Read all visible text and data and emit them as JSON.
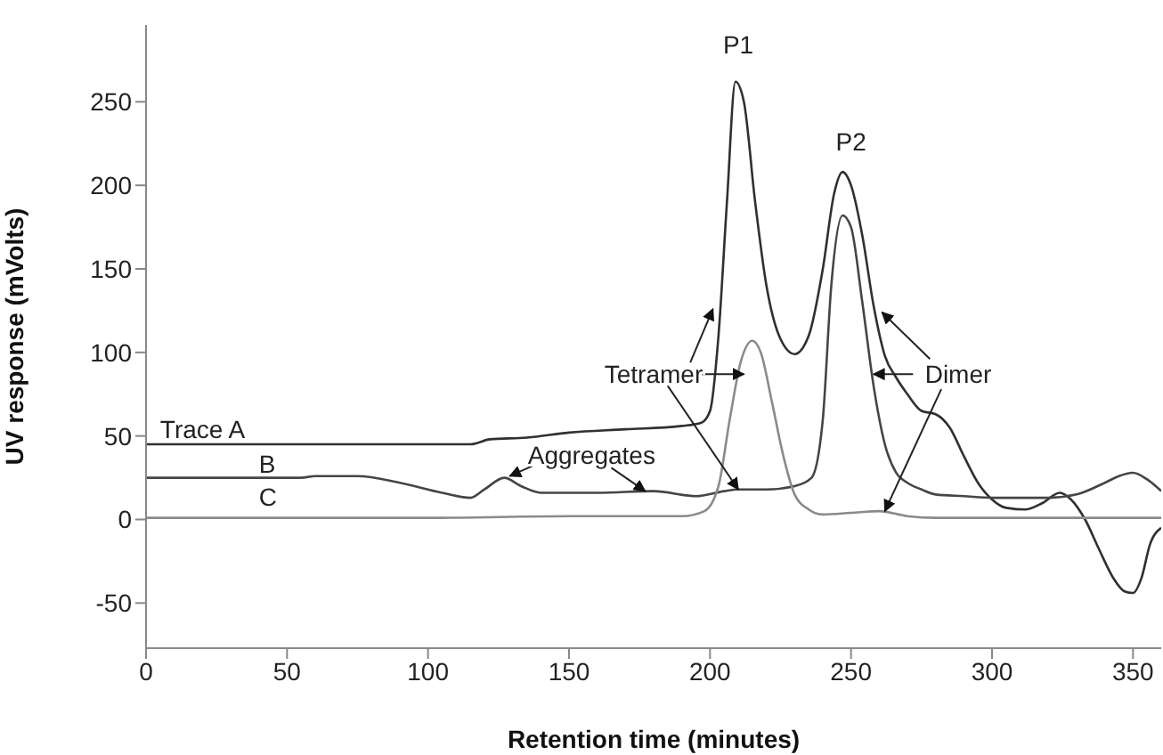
{
  "chart_data": {
    "type": "line",
    "xlabel": "Retention time (minutes)",
    "ylabel": "UV response (mVolts)",
    "xlim": [
      0,
      360
    ],
    "ylim": [
      -77,
      296
    ],
    "xticks": [
      0,
      50,
      100,
      150,
      200,
      250,
      300,
      350
    ],
    "yticks": [
      -50,
      0,
      50,
      100,
      150,
      200,
      250
    ],
    "marker": "none",
    "line_style": "solid",
    "series": [
      {
        "name": "Trace A",
        "color": "#303030",
        "x": [
          0,
          50,
          100,
          115,
          122,
          135,
          150,
          170,
          190,
          197,
          200,
          203,
          206,
          209,
          212,
          216,
          220,
          225,
          230,
          235,
          240,
          244,
          247,
          250,
          254,
          258,
          262,
          266,
          270,
          275,
          280,
          285,
          290,
          295,
          300,
          305,
          312,
          318,
          324,
          328,
          333,
          338,
          343,
          347,
          350,
          353,
          356,
          360
        ],
        "values": [
          45,
          45,
          45,
          45,
          48,
          49,
          52,
          54,
          56,
          58,
          65,
          110,
          190,
          262,
          250,
          190,
          140,
          108,
          99,
          110,
          150,
          195,
          208,
          200,
          170,
          128,
          98,
          85,
          75,
          65,
          63,
          55,
          38,
          22,
          12,
          7,
          6,
          10,
          16,
          12,
          0,
          -18,
          -35,
          -43,
          -44,
          -35,
          -15,
          -5
        ]
      },
      {
        "name": "B",
        "color": "#454545",
        "x": [
          0,
          55,
          60,
          75,
          90,
          105,
          115,
          120,
          127,
          133,
          140,
          160,
          180,
          195,
          205,
          210,
          220,
          230,
          236,
          240,
          243,
          247,
          250,
          254,
          258,
          262,
          266,
          270,
          275,
          280,
          290,
          300,
          320,
          330,
          340,
          345,
          350,
          355,
          360
        ],
        "values": [
          25,
          25,
          26,
          26,
          22,
          16,
          13,
          18,
          25,
          20,
          16,
          16,
          17,
          14,
          17,
          18,
          18,
          20,
          25,
          60,
          140,
          182,
          175,
          130,
          80,
          45,
          28,
          22,
          18,
          15,
          14,
          13,
          13,
          15,
          22,
          26,
          28,
          24,
          17
        ]
      },
      {
        "name": "C",
        "color": "#8a8a8a",
        "x": [
          0,
          100,
          150,
          190,
          198,
          203,
          207,
          211,
          215,
          218,
          222,
          226,
          230,
          235,
          240,
          250,
          260,
          270,
          280,
          320,
          360
        ],
        "values": [
          1,
          1,
          2,
          2,
          5,
          20,
          60,
          95,
          107,
          100,
          70,
          38,
          15,
          6,
          3,
          4,
          5,
          2,
          1,
          1,
          1
        ]
      }
    ],
    "annotations": [
      "P1",
      "P2",
      {
        "text": "Tetramer",
        "x": 210,
        "y": 18
      },
      {
        "text": "Dimer",
        "x": 262,
        "y": 5
      },
      {
        "text": "Aggregates",
        "x": 177,
        "y": 17
      }
    ]
  }
}
